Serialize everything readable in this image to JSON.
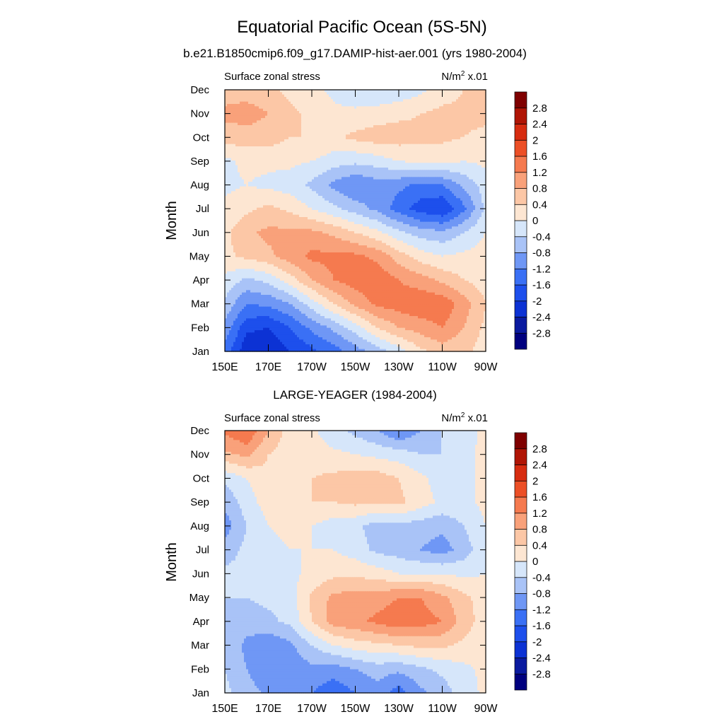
{
  "figure": {
    "title": "Equatorial Pacific Ocean (5S-5N)"
  },
  "colors": {
    "levels": [
      -2.8,
      -2.4,
      -2,
      -1.6,
      -1.2,
      -0.8,
      -0.4,
      0,
      0.4,
      0.8,
      1.2,
      1.6,
      2,
      2.4,
      2.8
    ],
    "level_labels": [
      "-2.8",
      "-2.4",
      "-2",
      "-1.6",
      "-1.2",
      "-0.8",
      "-0.4",
      "0",
      "0.4",
      "0.8",
      "1.2",
      "1.6",
      "2",
      "2.4",
      "2.8"
    ],
    "palette": [
      "#00007f",
      "#0a1a9f",
      "#0c32d4",
      "#1d4fec",
      "#3a70f5",
      "#6f97f5",
      "#a9c3f7",
      "#d6e6fa",
      "#fde6d2",
      "#fcc7a6",
      "#f9a17a",
      "#f57a4f",
      "#ec4f26",
      "#d72c10",
      "#b01505",
      "#7f0000"
    ]
  },
  "chart_data": [
    {
      "type": "heatmap",
      "title": "b.e21.B1850cmip6.f09_g17.DAMIP-hist-aer.001 (yrs 1980-2004)",
      "left_label": "Surface zonal stress",
      "right_label": "N/m",
      "units_sup": "2",
      "units_suffix": " x.01",
      "ylabel": "Month",
      "xlabel": "",
      "x_ticks": [
        "150E",
        "170E",
        "170W",
        "150W",
        "130W",
        "110W",
        "90W"
      ],
      "x_range": [
        150,
        270
      ],
      "y_ticks": [
        "Jan",
        "Feb",
        "Mar",
        "Apr",
        "May",
        "Jun",
        "Jul",
        "Aug",
        "Sep",
        "Oct",
        "Nov",
        "Dec"
      ],
      "y_range": [
        1,
        12
      ],
      "x": [
        150,
        160,
        170,
        180,
        190,
        200,
        210,
        220,
        230,
        240,
        250,
        260,
        270
      ],
      "y": [
        1,
        2,
        3,
        4,
        5,
        6,
        7,
        8,
        9,
        10,
        11,
        12
      ],
      "z": [
        [
          -1.4,
          -2.3,
          -2.4,
          -2.0,
          -1.7,
          -1.4,
          -1.0,
          -0.6,
          -0.2,
          0.3,
          0.6,
          0.5,
          0.2
        ],
        [
          -0.9,
          -1.9,
          -2.0,
          -1.6,
          -1.1,
          -0.7,
          -0.2,
          0.4,
          0.8,
          1.0,
          1.2,
          0.8,
          0.3
        ],
        [
          -0.5,
          -1.2,
          -1.1,
          -0.8,
          -0.2,
          0.4,
          0.9,
          1.3,
          1.4,
          1.5,
          1.5,
          1.0,
          0.4
        ],
        [
          -0.1,
          -0.5,
          -0.3,
          0.2,
          0.8,
          1.2,
          1.4,
          1.5,
          1.2,
          1.0,
          0.7,
          0.4,
          0.2
        ],
        [
          0.3,
          0.5,
          0.7,
          1.0,
          1.3,
          1.3,
          1.3,
          1.1,
          0.6,
          0.2,
          0.0,
          0.1,
          0.2
        ],
        [
          0.3,
          0.7,
          0.9,
          0.9,
          0.9,
          0.7,
          0.4,
          0.1,
          -0.3,
          -0.6,
          -0.7,
          -0.4,
          0.0
        ],
        [
          0.1,
          0.3,
          0.5,
          0.3,
          0.0,
          -0.3,
          -0.6,
          -0.9,
          -1.4,
          -1.8,
          -2.0,
          -1.3,
          -0.3
        ],
        [
          -0.1,
          0.0,
          -0.1,
          -0.2,
          -0.5,
          -0.9,
          -1.2,
          -1.0,
          -1.1,
          -1.3,
          -1.2,
          -0.7,
          -0.2
        ],
        [
          -0.1,
          0.1,
          0.1,
          0.1,
          0.0,
          -0.2,
          -0.3,
          -0.2,
          0.0,
          0.1,
          0.1,
          0.0,
          0.1
        ],
        [
          0.6,
          0.6,
          0.6,
          0.4,
          0.4,
          0.3,
          0.5,
          0.6,
          0.6,
          0.5,
          0.5,
          0.4,
          0.3
        ],
        [
          0.9,
          1.0,
          0.8,
          0.5,
          0.3,
          0.1,
          0.1,
          0.2,
          0.3,
          0.4,
          0.5,
          0.5,
          0.5
        ],
        [
          0.6,
          0.6,
          0.5,
          0.3,
          0.1,
          -0.1,
          -0.3,
          -0.4,
          -0.3,
          -0.1,
          0.2,
          0.4,
          0.5
        ]
      ]
    },
    {
      "type": "heatmap",
      "title": "LARGE-YEAGER (1984-2004)",
      "left_label": "Surface zonal stress",
      "right_label": "N/m",
      "units_sup": "2",
      "units_suffix": " x.01",
      "ylabel": "Month",
      "xlabel": "",
      "x_ticks": [
        "150E",
        "170E",
        "170W",
        "150W",
        "130W",
        "110W",
        "90W"
      ],
      "x_range": [
        150,
        270
      ],
      "y_ticks": [
        "Jan",
        "Feb",
        "Mar",
        "Apr",
        "May",
        "Jun",
        "Jul",
        "Aug",
        "Sep",
        "Oct",
        "Nov",
        "Dec"
      ],
      "y_range": [
        1,
        12
      ],
      "x": [
        150,
        160,
        170,
        180,
        190,
        200,
        210,
        220,
        230,
        240,
        250,
        260,
        270
      ],
      "y": [
        1,
        2,
        3,
        4,
        5,
        6,
        7,
        8,
        9,
        10,
        11,
        12
      ],
      "z": [
        [
          -0.3,
          -0.6,
          -0.9,
          -1.0,
          -1.2,
          -1.5,
          -1.2,
          -1.0,
          -1.4,
          -0.9,
          -0.6,
          -0.2,
          0.1
        ],
        [
          -0.4,
          -0.8,
          -1.2,
          -1.1,
          -0.9,
          -1.0,
          -0.8,
          -0.6,
          -0.7,
          -0.5,
          -0.3,
          -0.1,
          0.1
        ],
        [
          -0.5,
          -0.9,
          -1.1,
          -0.9,
          -0.4,
          0.0,
          0.2,
          0.3,
          0.4,
          0.5,
          0.5,
          0.3,
          0.1
        ],
        [
          -0.5,
          -0.6,
          -0.5,
          -0.3,
          0.4,
          1.0,
          1.1,
          1.3,
          1.5,
          1.4,
          1.2,
          0.6,
          0.2
        ],
        [
          -0.4,
          -0.4,
          -0.3,
          -0.2,
          0.5,
          0.9,
          1.0,
          1.0,
          1.2,
          1.2,
          0.9,
          0.5,
          0.2
        ],
        [
          -0.3,
          -0.3,
          -0.2,
          -0.1,
          0.1,
          0.3,
          0.3,
          0.2,
          0.0,
          0.0,
          0.0,
          -0.1,
          0.0
        ],
        [
          -0.6,
          -0.3,
          -0.1,
          0.0,
          0.0,
          0.0,
          -0.2,
          -0.5,
          -0.6,
          -0.8,
          -1.0,
          -0.6,
          -0.1
        ],
        [
          -1.0,
          -0.4,
          0.0,
          0.1,
          0.0,
          -0.2,
          -0.3,
          -0.6,
          -0.5,
          -0.6,
          -0.7,
          -0.4,
          0.0
        ],
        [
          -0.7,
          -0.2,
          0.2,
          0.3,
          0.4,
          0.4,
          0.5,
          0.5,
          0.5,
          0.2,
          -0.1,
          -0.1,
          0.1
        ],
        [
          -0.3,
          0.0,
          0.3,
          0.3,
          0.4,
          0.5,
          0.6,
          0.6,
          0.4,
          0.1,
          -0.2,
          -0.2,
          0.2
        ],
        [
          0.7,
          0.9,
          0.4,
          0.2,
          0.2,
          0.1,
          0.0,
          -0.1,
          -0.2,
          -0.4,
          -0.4,
          -0.2,
          0.2
        ],
        [
          1.3,
          1.6,
          0.8,
          0.2,
          0.1,
          -0.3,
          -0.5,
          -0.8,
          -1.2,
          -0.8,
          -0.4,
          -0.2,
          0.1
        ]
      ]
    }
  ]
}
